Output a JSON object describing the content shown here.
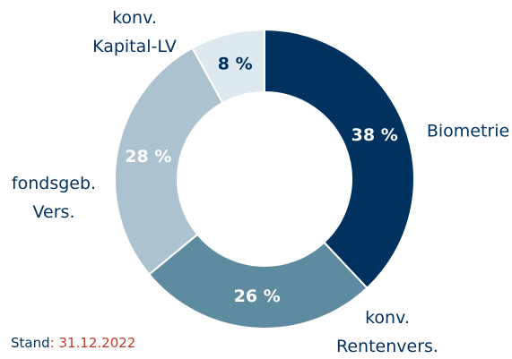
{
  "chart_data": {
    "type": "pie",
    "categories": [
      "Biometrie",
      "konv. Rentenvers.",
      "fondsgeb. Vers.",
      "konv. Kapital-LV"
    ],
    "values": [
      38,
      26,
      28,
      8
    ],
    "value_labels": [
      "38 %",
      "26 %",
      "28 %",
      "8 %"
    ],
    "colors": [
      "#00325f",
      "#5f8ba0",
      "#adc2cf",
      "#dde8ef"
    ],
    "footnote": {
      "label": "Stand",
      "separator": ":",
      "date": " 31.12.2022"
    }
  }
}
